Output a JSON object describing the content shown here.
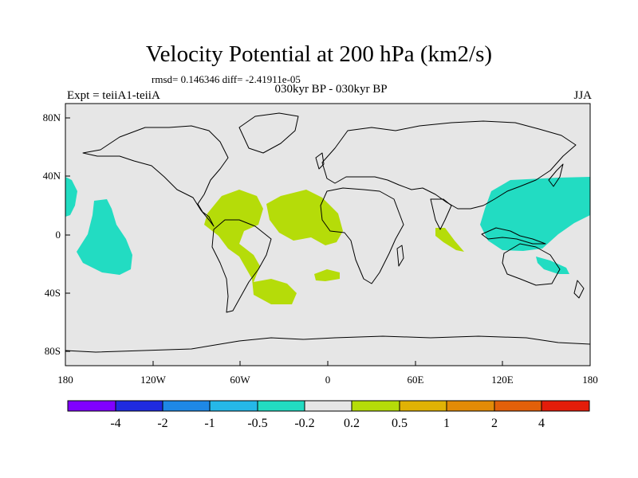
{
  "title": "Velocity Potential at 200 hPa (km2/s)",
  "stats": "rmsd= 0.146346  diff= -2.41911e-05",
  "left_label": "Expt = teiiA1-teiiA",
  "center_label": "030kyr BP - 030kyr BP",
  "right_label": "JJA",
  "lat_ticks": [
    "80N",
    "40N",
    "0",
    "40S",
    "80S"
  ],
  "lon_ticks": [
    "180",
    "120W",
    "60W",
    "0",
    "60E",
    "120E",
    "180"
  ],
  "colorbar": {
    "colors": [
      "#8000ff",
      "#1f2be0",
      "#1e88e6",
      "#25b8e8",
      "#22dcc2",
      "#e6e6e6",
      "#b5dc09",
      "#e0b205",
      "#e28b07",
      "#e2600a",
      "#e41d0a"
    ],
    "labels": [
      "-4",
      "-2",
      "-1",
      "-0.5",
      "-0.2",
      "0.2",
      "0.5",
      "1",
      "2",
      "4"
    ]
  },
  "map": {
    "background": "#e6e6e6",
    "negative_fill": "#22dcc2",
    "positive_fill": "#b5dc09"
  }
}
